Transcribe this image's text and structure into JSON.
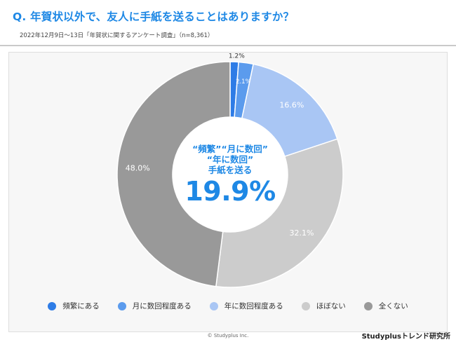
{
  "header": {
    "title": "Q. 年賀状以外で、友人に手紙を送ることはありますか？",
    "subtitle": "2022年12月9日〜13日「年賀状に関するアンケート調査」（n=8,361）"
  },
  "center": {
    "line1": "“頻繁”“月に数回”",
    "line2": "“年に数回”",
    "line3": "手紙を送る",
    "total": "19.9%"
  },
  "chart_data": {
    "type": "pie",
    "donut": true,
    "start_angle_deg": 0,
    "direction": "clockwise",
    "categories": [
      "頻繁にある",
      "月に数回程度ある",
      "年に数回程度ある",
      "ほぼない",
      "全くない"
    ],
    "values": [
      1.2,
      2.1,
      16.6,
      32.1,
      48.0
    ],
    "labels": [
      "1.2%",
      "2.1%",
      "16.6%",
      "32.1%",
      "48.0%"
    ],
    "colors": [
      "#2e7ce6",
      "#5b9bed",
      "#a9c6f4",
      "#cccccc",
      "#999999"
    ],
    "label_colors": [
      "#333333",
      "#ffffff",
      "#ffffff",
      "#ffffff",
      "#ffffff"
    ],
    "legend_placement": "bottom"
  },
  "footer": {
    "copyright": "© Studyplus Inc.",
    "brand": "Studyplusトレンド研究所"
  }
}
